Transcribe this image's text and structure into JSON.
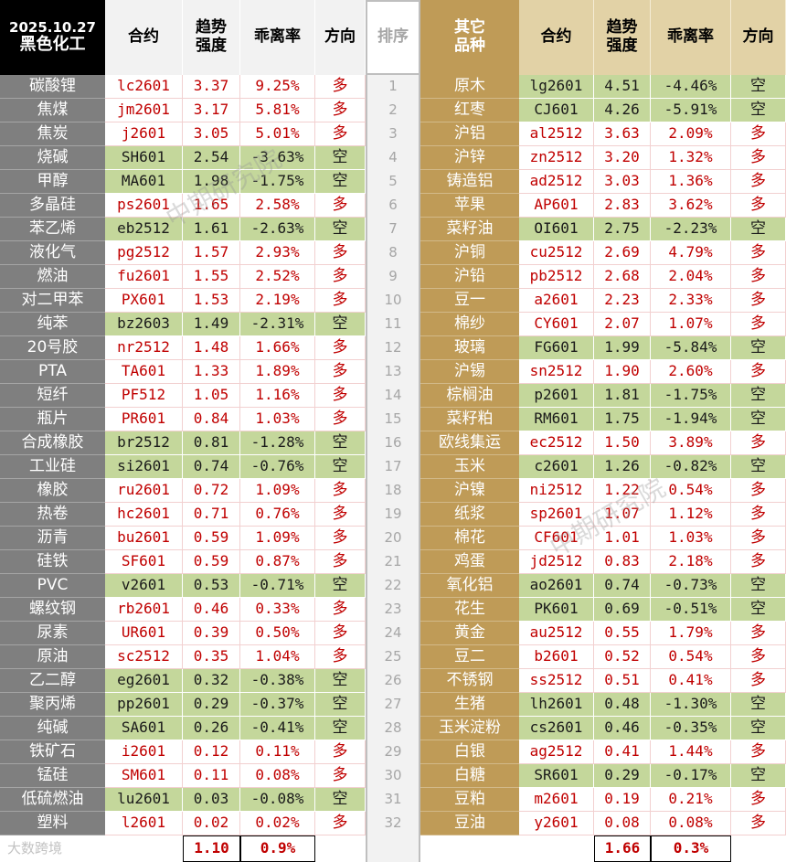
{
  "header": {
    "date": "2025.10.27",
    "left_sector": "黑色化工",
    "left_cols": [
      "合约",
      "趋势\n强度",
      "乖离率",
      "方向"
    ],
    "rank": "排序",
    "right_sector": "其它\n品种",
    "right_cols": [
      "合约",
      "趋势\n强度",
      "乖离率",
      "方向"
    ]
  },
  "left_rows": [
    [
      "碳酸锂",
      "lc2601",
      "3.37",
      "9.25%",
      "多"
    ],
    [
      "焦煤",
      "jm2601",
      "3.17",
      "5.81%",
      "多"
    ],
    [
      "焦炭",
      "j2601",
      "3.05",
      "5.01%",
      "多"
    ],
    [
      "烧碱",
      "SH601",
      "2.54",
      "-3.63%",
      "空"
    ],
    [
      "甲醇",
      "MA601",
      "1.98",
      "-1.75%",
      "空"
    ],
    [
      "多晶硅",
      "ps2601",
      "1.65",
      "2.58%",
      "多"
    ],
    [
      "苯乙烯",
      "eb2512",
      "1.61",
      "-2.63%",
      "空"
    ],
    [
      "液化气",
      "pg2512",
      "1.57",
      "2.93%",
      "多"
    ],
    [
      "燃油",
      "fu2601",
      "1.55",
      "2.52%",
      "多"
    ],
    [
      "对二甲苯",
      "PX601",
      "1.53",
      "2.19%",
      "多"
    ],
    [
      "纯苯",
      "bz2603",
      "1.49",
      "-2.31%",
      "空"
    ],
    [
      "20号胶",
      "nr2512",
      "1.48",
      "1.66%",
      "多"
    ],
    [
      "PTA",
      "TA601",
      "1.33",
      "1.89%",
      "多"
    ],
    [
      "短纤",
      "PF512",
      "1.05",
      "1.16%",
      "多"
    ],
    [
      "瓶片",
      "PR601",
      "0.84",
      "1.03%",
      "多"
    ],
    [
      "合成橡胶",
      "br2512",
      "0.81",
      "-1.28%",
      "空"
    ],
    [
      "工业硅",
      "si2601",
      "0.74",
      "-0.76%",
      "空"
    ],
    [
      "橡胶",
      "ru2601",
      "0.72",
      "1.09%",
      "多"
    ],
    [
      "热卷",
      "hc2601",
      "0.71",
      "0.76%",
      "多"
    ],
    [
      "沥青",
      "bu2601",
      "0.59",
      "1.09%",
      "多"
    ],
    [
      "硅铁",
      "SF601",
      "0.59",
      "0.87%",
      "多"
    ],
    [
      "PVC",
      "v2601",
      "0.53",
      "-0.71%",
      "空"
    ],
    [
      "螺纹钢",
      "rb2601",
      "0.46",
      "0.33%",
      "多"
    ],
    [
      "尿素",
      "UR601",
      "0.39",
      "0.50%",
      "多"
    ],
    [
      "原油",
      "sc2512",
      "0.35",
      "1.04%",
      "多"
    ],
    [
      "乙二醇",
      "eg2601",
      "0.32",
      "-0.38%",
      "空"
    ],
    [
      "聚丙烯",
      "pp2601",
      "0.29",
      "-0.37%",
      "空"
    ],
    [
      "纯碱",
      "SA601",
      "0.26",
      "-0.41%",
      "空"
    ],
    [
      "铁矿石",
      "i2601",
      "0.12",
      "0.11%",
      "多"
    ],
    [
      "锰硅",
      "SM601",
      "0.11",
      "0.08%",
      "多"
    ],
    [
      "低硫燃油",
      "lu2601",
      "0.03",
      "-0.08%",
      "空"
    ],
    [
      "塑料",
      "l2601",
      "0.02",
      "0.02%",
      "多"
    ]
  ],
  "ranks": [
    "1",
    "2",
    "3",
    "4",
    "5",
    "6",
    "7",
    "8",
    "9",
    "10",
    "11",
    "12",
    "13",
    "14",
    "15",
    "16",
    "17",
    "18",
    "19",
    "20",
    "21",
    "22",
    "23",
    "24",
    "25",
    "26",
    "27",
    "28",
    "29",
    "30",
    "31",
    "32"
  ],
  "right_rows": [
    [
      "原木",
      "lg2601",
      "4.51",
      "-4.46%",
      "空"
    ],
    [
      "红枣",
      "CJ601",
      "4.26",
      "-5.91%",
      "空"
    ],
    [
      "沪铝",
      "al2512",
      "3.63",
      "2.09%",
      "多"
    ],
    [
      "沪锌",
      "zn2512",
      "3.20",
      "1.32%",
      "多"
    ],
    [
      "铸造铝",
      "ad2512",
      "3.03",
      "1.36%",
      "多"
    ],
    [
      "苹果",
      "AP601",
      "2.83",
      "3.62%",
      "多"
    ],
    [
      "菜籽油",
      "OI601",
      "2.75",
      "-2.23%",
      "空"
    ],
    [
      "沪铜",
      "cu2512",
      "2.69",
      "4.79%",
      "多"
    ],
    [
      "沪铅",
      "pb2512",
      "2.68",
      "2.04%",
      "多"
    ],
    [
      "豆一",
      "a2601",
      "2.23",
      "2.33%",
      "多"
    ],
    [
      "棉纱",
      "CY601",
      "2.07",
      "1.07%",
      "多"
    ],
    [
      "玻璃",
      "FG601",
      "1.99",
      "-5.84%",
      "空"
    ],
    [
      "沪锡",
      "sn2512",
      "1.90",
      "2.60%",
      "多"
    ],
    [
      "棕榈油",
      "p2601",
      "1.81",
      "-1.75%",
      "空"
    ],
    [
      "菜籽粕",
      "RM601",
      "1.75",
      "-1.94%",
      "空"
    ],
    [
      "欧线集运",
      "ec2512",
      "1.50",
      "3.89%",
      "多"
    ],
    [
      "玉米",
      "c2601",
      "1.26",
      "-0.82%",
      "空"
    ],
    [
      "沪镍",
      "ni2512",
      "1.22",
      "0.54%",
      "多"
    ],
    [
      "纸浆",
      "sp2601",
      "1.07",
      "1.12%",
      "多"
    ],
    [
      "棉花",
      "CF601",
      "1.01",
      "1.03%",
      "多"
    ],
    [
      "鸡蛋",
      "jd2512",
      "0.83",
      "2.18%",
      "多"
    ],
    [
      "氧化铝",
      "ao2601",
      "0.74",
      "-0.73%",
      "空"
    ],
    [
      "花生",
      "PK601",
      "0.69",
      "-0.51%",
      "空"
    ],
    [
      "黄金",
      "au2512",
      "0.55",
      "1.79%",
      "多"
    ],
    [
      "豆二",
      "b2601",
      "0.52",
      "0.54%",
      "多"
    ],
    [
      "不锈钢",
      "ss2512",
      "0.51",
      "0.41%",
      "多"
    ],
    [
      "生猪",
      "lh2601",
      "0.48",
      "-1.30%",
      "空"
    ],
    [
      "玉米淀粉",
      "cs2601",
      "0.46",
      "-0.35%",
      "空"
    ],
    [
      "白银",
      "ag2512",
      "0.41",
      "1.44%",
      "多"
    ],
    [
      "白糖",
      "SR601",
      "0.29",
      "-0.17%",
      "空"
    ],
    [
      "豆粕",
      "m2601",
      "0.19",
      "0.21%",
      "多"
    ],
    [
      "豆油",
      "y2601",
      "0.08",
      "0.08%",
      "多"
    ]
  ],
  "footer": {
    "left_strength": "1.10",
    "left_deviation": "0.9%",
    "right_strength": "1.66",
    "right_deviation": "0.3%"
  },
  "watermark": "中期研究院",
  "logo": "大数跨境"
}
